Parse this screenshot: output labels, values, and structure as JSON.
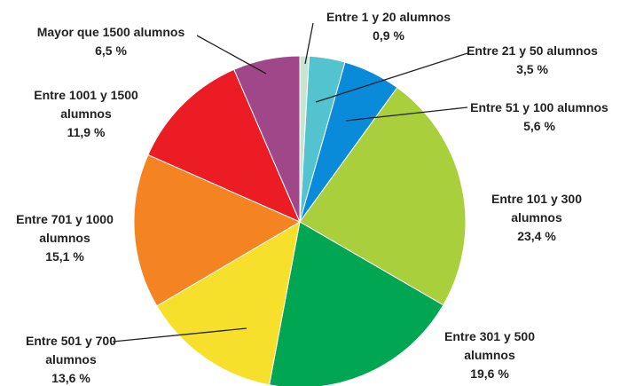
{
  "chart_data": {
    "type": "pie",
    "categories": [
      "Entre 1 y 20 alumnos",
      "Entre 21 y 50 alumnos",
      "Entre 51 y 100 alumnos",
      "Entre 101 y 300 alumnos",
      "Entre 301 y 500 alumnos",
      "Entre 501 y 700 alumnos",
      "Entre 701 y 1000 alumnos",
      "Entre 1001 y 1500 alumnos",
      "Mayor que 1500 alumnos"
    ],
    "values": [
      0.9,
      3.5,
      5.6,
      23.4,
      19.6,
      13.6,
      15.1,
      11.9,
      6.5
    ],
    "value_labels": [
      "0,9 %",
      "3,5 %",
      "5,6 %",
      "23,4 %",
      "19,6 %",
      "13,6 %",
      "15,1 %",
      "11,9 %",
      "6,5 %"
    ],
    "colors": [
      "#c9e4d3",
      "#52c3cf",
      "#0a8bd9",
      "#a9cf3d",
      "#00a651",
      "#f6e02b",
      "#f38421",
      "#ec1c24",
      "#9f4789"
    ]
  }
}
